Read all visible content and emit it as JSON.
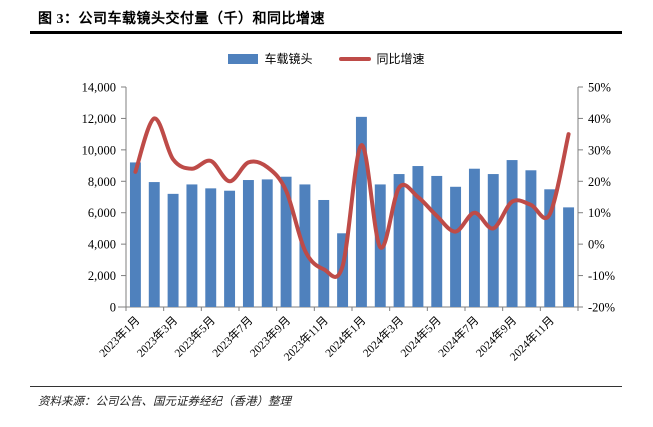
{
  "title": "图 3：公司车载镜头交付量（千）和同比增速",
  "source_note": "资料来源：公司公告、国元证券经纪（香港）整理",
  "colors": {
    "bar": "#4F81BD",
    "line": "#BE4B48",
    "axis": "#7F7F7F",
    "text": "#000000",
    "title_rule": "#000000"
  },
  "chart_data": {
    "type": "bar",
    "subtype": "bar-with-smooth-line-secondary-axis",
    "title": "图 3：公司车载镜头交付量（千）和同比增速",
    "grid": false,
    "legend_position": "top",
    "categories": [
      "2023年1月",
      "2023年2月",
      "2023年3月",
      "2023年4月",
      "2023年5月",
      "2023年6月",
      "2023年7月",
      "2023年8月",
      "2023年9月",
      "2023年10月",
      "2023年11月",
      "2023年12月",
      "2024年1月",
      "2024年2月",
      "2024年3月",
      "2024年4月",
      "2024年5月",
      "2024年6月",
      "2024年7月",
      "2024年8月",
      "2024年9月",
      "2024年10月",
      "2024年11月",
      "2024年12月"
    ],
    "x_tick_labels": [
      "2023年1月",
      "2023年3月",
      "2023年5月",
      "2023年7月",
      "2023年9月",
      "2023年11月",
      "2024年1月",
      "2024年3月",
      "2024年5月",
      "2024年7月",
      "2024年9月",
      "2024年11月"
    ],
    "series": [
      {
        "name": "车载镜头",
        "type": "bar",
        "axis": "left",
        "color": "#4F81BD",
        "values": [
          9200,
          7950,
          7200,
          7800,
          7550,
          7400,
          8080,
          8120,
          8290,
          7800,
          6810,
          4690,
          12100,
          7800,
          8460,
          8970,
          8340,
          7650,
          8800,
          8460,
          9350,
          8700,
          7490,
          6340
        ]
      },
      {
        "name": "同比增速",
        "type": "line",
        "axis": "right",
        "color": "#BE4B48",
        "values": [
          23,
          40,
          27,
          24,
          26.5,
          20,
          26,
          24.5,
          17,
          -2,
          -8,
          -7,
          31.5,
          -1,
          18,
          15,
          9,
          4,
          10,
          5,
          13.5,
          12.5,
          9.5,
          35
        ]
      }
    ],
    "left_axis": {
      "min": 0,
      "max": 14000,
      "step": 2000,
      "tick_labels": [
        "0",
        "2,000",
        "4,000",
        "6,000",
        "8,000",
        "10,000",
        "12,000",
        "14,000"
      ]
    },
    "right_axis": {
      "min": -20,
      "max": 50,
      "step": 10,
      "tick_labels": [
        "-20%",
        "-10%",
        "0%",
        "10%",
        "20%",
        "30%",
        "40%",
        "50%"
      ]
    }
  }
}
